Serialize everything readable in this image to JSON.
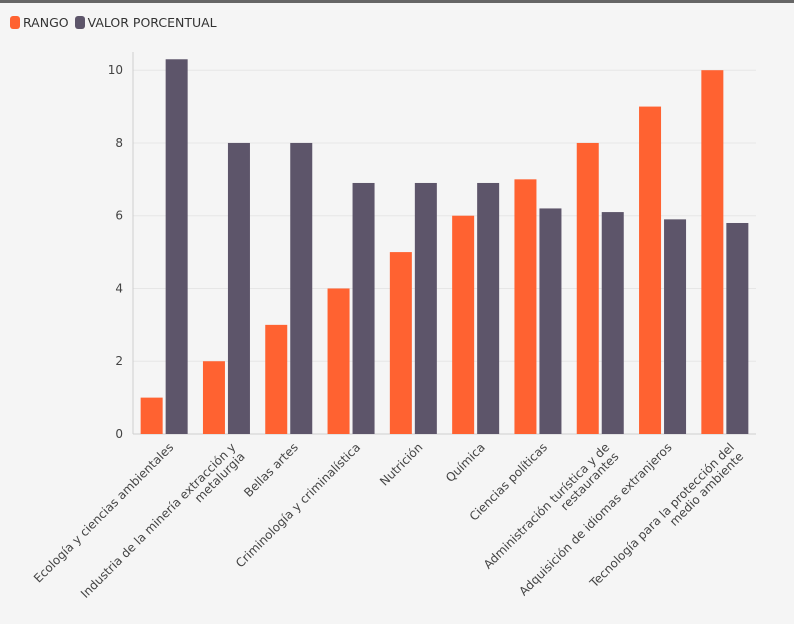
{
  "legend": [
    {
      "label": "RANGO",
      "color": "#ff6231"
    },
    {
      "label": "VALOR PORCENTUAL",
      "color": "#5d556a"
    }
  ],
  "chart_data": {
    "type": "bar",
    "categories": [
      [
        "Ecología y ciencias ambientales"
      ],
      [
        "Industria de la minería extracción y",
        "metalurgia"
      ],
      [
        "Bellas artes"
      ],
      [
        "Criminología y criminalística"
      ],
      [
        "Nutrición"
      ],
      [
        "Química"
      ],
      [
        "Ciencias políticas"
      ],
      [
        "Administración turística y de",
        "restaurantes"
      ],
      [
        "Adquisición de idiomas extranjeros"
      ],
      [
        "Tecnología para la protección del",
        "medio ambiente"
      ]
    ],
    "series": [
      {
        "name": "RANGO",
        "color": "#ff6231",
        "values": [
          1,
          2,
          3,
          4,
          5,
          6,
          7,
          8,
          9,
          10
        ]
      },
      {
        "name": "VALOR PORCENTUAL",
        "color": "#5d556a",
        "values": [
          10.3,
          8,
          8,
          6.9,
          6.9,
          6.9,
          6.2,
          6.1,
          5.9,
          5.8
        ]
      }
    ],
    "ylim": [
      0,
      10.5
    ],
    "yticks": [
      0,
      2,
      4,
      6,
      8,
      10
    ],
    "grid": true,
    "legend_position": "top-left"
  }
}
